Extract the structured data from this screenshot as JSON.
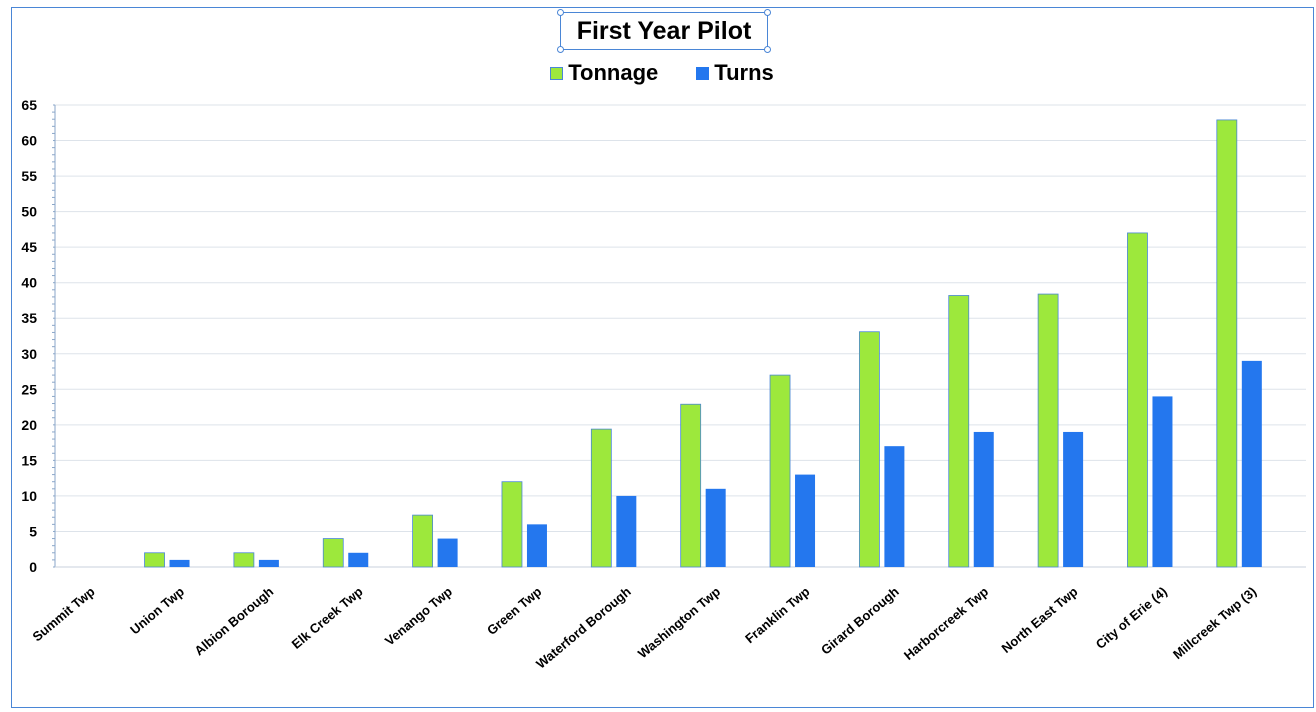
{
  "chart_data": {
    "type": "bar",
    "title": "First Year Pilot",
    "categories": [
      "Summit Twp",
      "Union Twp",
      "Albion Borough",
      "Elk Creek Twp",
      "Venango Twp",
      "Green Twp",
      "Waterford Borough",
      "Washington Twp",
      "Franklin Twp",
      "Girard Borough",
      "Harborcreek Twp",
      "North East Twp",
      "City of Erie (4)",
      "Millcreek Twp (3)"
    ],
    "series": [
      {
        "name": "Tonnage",
        "color": "#9de83c",
        "values": [
          0,
          2,
          2,
          4,
          7.3,
          12,
          19.4,
          22.9,
          27,
          33.1,
          38.2,
          38.4,
          47,
          62.9
        ]
      },
      {
        "name": "Turns",
        "color": "#2477ee",
        "values": [
          0,
          1,
          1,
          2,
          4,
          6,
          10,
          11,
          13,
          17,
          19,
          19,
          24,
          29
        ]
      }
    ],
    "ylim": [
      0,
      65
    ],
    "yticks": [
      0,
      5,
      10,
      15,
      20,
      25,
      30,
      35,
      40,
      45,
      50,
      55,
      60,
      65
    ],
    "xlabel": "",
    "ylabel": "",
    "grid": true,
    "legend_position": "top-center"
  }
}
